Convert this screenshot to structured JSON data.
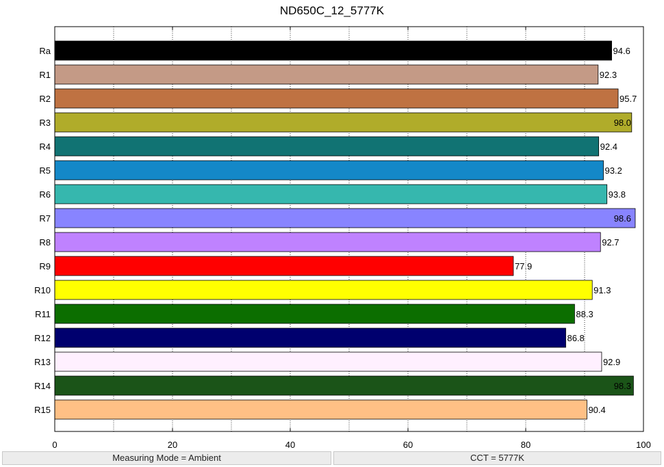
{
  "chart_data": {
    "type": "bar",
    "orientation": "horizontal",
    "title": "ND650C_12_5777K",
    "xlabel": "",
    "ylabel": "",
    "xlim": [
      0,
      100
    ],
    "x_ticks": [
      0,
      20,
      40,
      60,
      80,
      100
    ],
    "grid": "vertical dotted every 10",
    "categories": [
      "Ra",
      "R1",
      "R2",
      "R3",
      "R4",
      "R5",
      "R6",
      "R7",
      "R8",
      "R9",
      "R10",
      "R11",
      "R12",
      "R13",
      "R14",
      "R15"
    ],
    "values": [
      94.6,
      92.3,
      95.7,
      98.0,
      92.4,
      93.2,
      93.8,
      98.6,
      92.7,
      77.9,
      91.3,
      88.3,
      86.8,
      92.9,
      98.3,
      90.4
    ],
    "value_labels": [
      "94.6",
      "92.3",
      "95.7",
      "98.0",
      "92.4",
      "93.2",
      "93.8",
      "98.6",
      "92.7",
      "77.9",
      "91.3",
      "88.3",
      "86.8",
      "92.9",
      "98.3",
      "90.4"
    ],
    "colors": [
      "#000000",
      "#c49a86",
      "#bf7242",
      "#b0ac2a",
      "#117373",
      "#1488c8",
      "#36b7ae",
      "#8884ff",
      "#bf82ff",
      "#ff0000",
      "#ffff00",
      "#0c6e00",
      "#00006e",
      "#fff0ff",
      "#1b5418",
      "#ffc085"
    ]
  },
  "status": {
    "measuring_mode": "Measuring Mode = Ambient",
    "cct": "CCT = 5777K"
  }
}
